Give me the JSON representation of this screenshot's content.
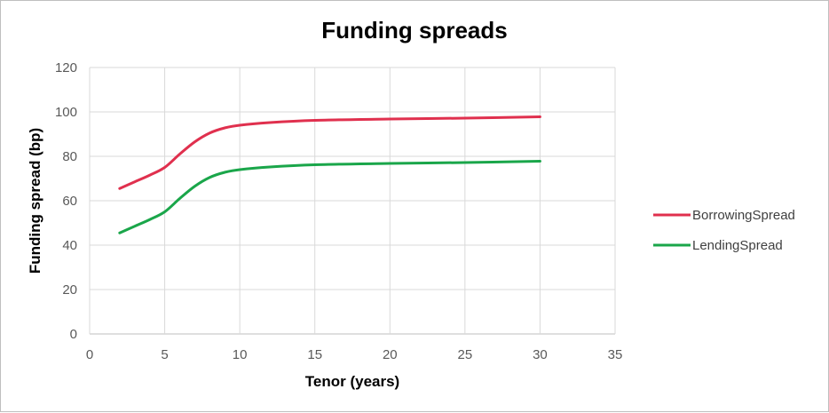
{
  "chart_data": {
    "type": "line",
    "title": "Funding spreads",
    "xlabel": "Tenor (years)",
    "ylabel": "Funding spread (bp)",
    "xlim": [
      0,
      35
    ],
    "ylim": [
      0,
      120
    ],
    "xticks": [
      0,
      5,
      10,
      15,
      20,
      25,
      30,
      35
    ],
    "yticks": [
      0,
      20,
      40,
      60,
      80,
      100,
      120
    ],
    "grid": true,
    "legend_position": "right",
    "series": [
      {
        "name": "BorrowingSpread",
        "color": "#e0304e",
        "x": [
          2,
          3,
          4,
          5,
          6,
          7,
          8,
          9,
          10,
          12,
          15,
          20,
          25,
          30
        ],
        "y": [
          65.5,
          68.5,
          71.5,
          75,
          81,
          86.5,
          90.5,
          92.8,
          94,
          95.2,
          96.2,
          96.8,
          97.2,
          97.8
        ]
      },
      {
        "name": "LendingSpread",
        "color": "#1aa64a",
        "x": [
          2,
          3,
          4,
          5,
          6,
          7,
          8,
          9,
          10,
          12,
          15,
          20,
          25,
          30
        ],
        "y": [
          45.5,
          48.5,
          51.5,
          55,
          61,
          66.5,
          70.5,
          72.8,
          74,
          75.2,
          76.2,
          76.8,
          77.2,
          77.8
        ]
      }
    ]
  }
}
